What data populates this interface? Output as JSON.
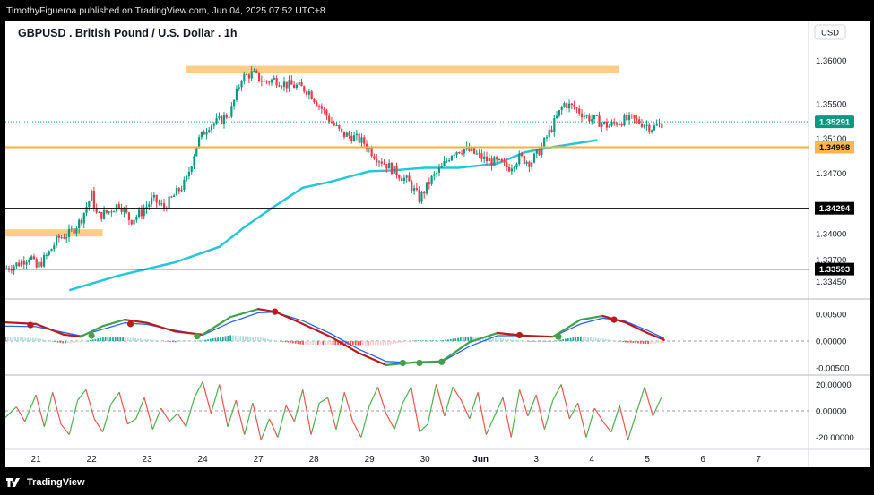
{
  "header": {
    "publisher_line": "TimothyFigueroa published on TradingView.com, Jun 04, 2025 07:52 UTC+8"
  },
  "footer": {
    "brand": "TradingView"
  },
  "chart_data": [
    {
      "type": "candlestick",
      "title": "GBPUSD . British Pound / U.S. Dollar . 1h",
      "currency": "USD",
      "ylim": [
        1.333,
        1.362
      ],
      "y_ticks": [
        1.36,
        1.355,
        1.351,
        1.347,
        1.34,
        1.337,
        1.3345
      ],
      "x_ticks": [
        "21",
        "22",
        "23",
        "24",
        "27",
        "28",
        "29",
        "30",
        "Jun",
        "3",
        "4",
        "5",
        "6",
        "7"
      ],
      "x_range": [
        -0.55,
        13.9
      ],
      "ma_line": [
        [
          0.6,
          1.3335
        ],
        [
          1.5,
          1.3352
        ],
        [
          2.5,
          1.3367
        ],
        [
          3.3,
          1.3385
        ],
        [
          3.8,
          1.341
        ],
        [
          4.3,
          1.3432
        ],
        [
          4.8,
          1.3453
        ],
        [
          5.3,
          1.346
        ],
        [
          6,
          1.3472
        ],
        [
          6.4,
          1.3473
        ],
        [
          7,
          1.3476
        ],
        [
          7.6,
          1.3476
        ],
        [
          8.3,
          1.3481
        ],
        [
          8.8,
          1.3494
        ],
        [
          9.3,
          1.35
        ],
        [
          10.1,
          1.3508
        ]
      ],
      "levels": [
        {
          "kind": "zone",
          "y": 1.35895,
          "x_from": 2.7,
          "x_to": 10.5,
          "label": ""
        },
        {
          "kind": "zone",
          "y": 1.3401,
          "x_from": -0.55,
          "x_to": 1.2,
          "label": ""
        },
        {
          "kind": "line",
          "y": 1.34998,
          "color": "#f5b041",
          "label": "1.34998"
        },
        {
          "kind": "line",
          "y": 1.34294,
          "color": "#000000",
          "label": "1.34294"
        },
        {
          "kind": "line",
          "y": 1.33593,
          "color": "#000000",
          "label": "1.33593"
        }
      ],
      "last_price": {
        "value": 1.35291,
        "label": "1.35291",
        "color": "#089981"
      },
      "price_path": [
        [
          -0.55,
          1.336
        ],
        [
          -0.3,
          1.3366
        ],
        [
          -0.1,
          1.3375
        ],
        [
          0,
          1.336
        ],
        [
          0.2,
          1.3375
        ],
        [
          0.4,
          1.3395
        ],
        [
          0.6,
          1.34
        ],
        [
          0.8,
          1.3415
        ],
        [
          1.0,
          1.3445
        ],
        [
          1.1,
          1.342
        ],
        [
          1.3,
          1.3425
        ],
        [
          1.5,
          1.3435
        ],
        [
          1.7,
          1.3415
        ],
        [
          1.9,
          1.3425
        ],
        [
          2.1,
          1.344
        ],
        [
          2.3,
          1.343
        ],
        [
          2.5,
          1.3445
        ],
        [
          2.7,
          1.346
        ],
        [
          2.9,
          1.3505
        ],
        [
          3.1,
          1.3525
        ],
        [
          3.3,
          1.353
        ],
        [
          3.5,
          1.354
        ],
        [
          3.7,
          1.358
        ],
        [
          3.9,
          1.3585
        ],
        [
          4.1,
          1.3575
        ],
        [
          4.3,
          1.3578
        ],
        [
          4.5,
          1.3572
        ],
        [
          4.7,
          1.357
        ],
        [
          4.9,
          1.3565
        ],
        [
          5.1,
          1.3548
        ],
        [
          5.3,
          1.353
        ],
        [
          5.5,
          1.3515
        ],
        [
          5.7,
          1.3512
        ],
        [
          5.9,
          1.3505
        ],
        [
          6.1,
          1.349
        ],
        [
          6.3,
          1.348
        ],
        [
          6.5,
          1.347
        ],
        [
          6.7,
          1.346
        ],
        [
          6.9,
          1.344
        ],
        [
          7.1,
          1.3462
        ],
        [
          7.3,
          1.3476
        ],
        [
          7.5,
          1.3495
        ],
        [
          7.7,
          1.3498
        ],
        [
          7.9,
          1.3492
        ],
        [
          8.1,
          1.3485
        ],
        [
          8.3,
          1.3482
        ],
        [
          8.5,
          1.3476
        ],
        [
          8.7,
          1.3488
        ],
        [
          8.9,
          1.3482
        ],
        [
          9.1,
          1.35
        ],
        [
          9.3,
          1.3525
        ],
        [
          9.5,
          1.355
        ],
        [
          9.7,
          1.3545
        ],
        [
          9.9,
          1.3535
        ],
        [
          10.1,
          1.353
        ],
        [
          10.3,
          1.3524
        ],
        [
          10.5,
          1.353
        ],
        [
          10.7,
          1.3532
        ],
        [
          10.9,
          1.3528
        ],
        [
          11.1,
          1.3522
        ],
        [
          11.3,
          1.3529
        ]
      ],
      "series": [
        {
          "name": "",
          "kind": "candles"
        },
        {
          "name": "",
          "kind": "moving-average",
          "color": "#26c6da"
        }
      ]
    },
    {
      "type": "line",
      "title": "",
      "ylim": [
        -0.0062,
        0.0072
      ],
      "y_ticks": [
        0.005,
        0.0,
        -0.005
      ],
      "y_tick_labels": [
        "0.00500",
        "0.00000",
        "-0.00500"
      ],
      "fast": [
        [
          -0.55,
          0.0035
        ],
        [
          0,
          0.0032
        ],
        [
          0.5,
          0.0012
        ],
        [
          0.8,
          0.0008
        ],
        [
          1.2,
          0.0028
        ],
        [
          1.6,
          0.004
        ],
        [
          2,
          0.0034
        ],
        [
          2.5,
          0.0018
        ],
        [
          3,
          0.0012
        ],
        [
          3.5,
          0.0045
        ],
        [
          4,
          0.006
        ],
        [
          4.3,
          0.0055
        ],
        [
          4.8,
          0.0032
        ],
        [
          5.3,
          0.0008
        ],
        [
          5.8,
          -0.0022
        ],
        [
          6.3,
          -0.0045
        ],
        [
          6.8,
          -0.004
        ],
        [
          7.3,
          -0.0038
        ],
        [
          7.8,
          -0.0002
        ],
        [
          8.3,
          0.0015
        ],
        [
          8.8,
          0.001
        ],
        [
          9.3,
          0.0008
        ],
        [
          9.8,
          0.004
        ],
        [
          10.2,
          0.0047
        ],
        [
          10.6,
          0.0035
        ],
        [
          11,
          0.0015
        ],
        [
          11.3,
          0.0002
        ]
      ],
      "slow": [
        [
          -0.55,
          0.0028
        ],
        [
          0,
          0.0027
        ],
        [
          0.5,
          0.0016
        ],
        [
          0.8,
          0.001
        ],
        [
          1.2,
          0.0022
        ],
        [
          1.6,
          0.0034
        ],
        [
          2,
          0.0031
        ],
        [
          2.5,
          0.002
        ],
        [
          3,
          0.0011
        ],
        [
          3.5,
          0.0035
        ],
        [
          4,
          0.0053
        ],
        [
          4.3,
          0.0054
        ],
        [
          4.8,
          0.0038
        ],
        [
          5.3,
          0.0014
        ],
        [
          5.8,
          -0.0015
        ],
        [
          6.3,
          -0.0038
        ],
        [
          6.8,
          -0.0041
        ],
        [
          7.3,
          -0.0039
        ],
        [
          7.8,
          -0.001
        ],
        [
          8.3,
          0.001
        ],
        [
          8.8,
          0.001
        ],
        [
          9.3,
          0.0008
        ],
        [
          9.8,
          0.0032
        ],
        [
          10.2,
          0.0043
        ],
        [
          10.6,
          0.0037
        ],
        [
          11,
          0.002
        ],
        [
          11.3,
          0.0005
        ]
      ],
      "cross_points": [
        {
          "x": -0.1,
          "y": 0.003,
          "dir": "down"
        },
        {
          "x": 1.0,
          "y": 0.001,
          "dir": "up"
        },
        {
          "x": 1.7,
          "y": 0.0032,
          "dir": "down"
        },
        {
          "x": 2.9,
          "y": 0.0009,
          "dir": "up"
        },
        {
          "x": 4.3,
          "y": 0.0055,
          "dir": "down"
        },
        {
          "x": 6.6,
          "y": -0.0041,
          "dir": "up"
        },
        {
          "x": 6.9,
          "y": -0.0041,
          "dir": "up"
        },
        {
          "x": 7.3,
          "y": -0.0039,
          "dir": "up"
        },
        {
          "x": 8.7,
          "y": 0.0011,
          "dir": "down"
        },
        {
          "x": 9.4,
          "y": 0.0008,
          "dir": "up"
        },
        {
          "x": 10.4,
          "y": 0.004,
          "dir": "down"
        }
      ]
    },
    {
      "type": "line",
      "title": "",
      "ylim": [
        -27,
        27
      ],
      "y_ticks": [
        20,
        0,
        -20
      ],
      "y_tick_labels": [
        "20.00000",
        "0.00000",
        "-20.00000"
      ],
      "oscillator": [
        [
          -0.55,
          -5
        ],
        [
          -0.35,
          3
        ],
        [
          -0.2,
          -8
        ],
        [
          0,
          12
        ],
        [
          0.15,
          -12
        ],
        [
          0.3,
          14
        ],
        [
          0.45,
          -10
        ],
        [
          0.6,
          -18
        ],
        [
          0.75,
          8
        ],
        [
          0.9,
          16
        ],
        [
          1.05,
          -6
        ],
        [
          1.2,
          -16
        ],
        [
          1.35,
          5
        ],
        [
          1.5,
          14
        ],
        [
          1.65,
          -10
        ],
        [
          1.8,
          -6
        ],
        [
          1.95,
          10
        ],
        [
          2.1,
          -14
        ],
        [
          2.25,
          2
        ],
        [
          2.4,
          -8
        ],
        [
          2.55,
          -2
        ],
        [
          2.7,
          -12
        ],
        [
          2.85,
          10
        ],
        [
          3.0,
          22
        ],
        [
          3.15,
          -2
        ],
        [
          3.3,
          20
        ],
        [
          3.45,
          -12
        ],
        [
          3.6,
          8
        ],
        [
          3.75,
          -18
        ],
        [
          3.9,
          6
        ],
        [
          4.05,
          -22
        ],
        [
          4.2,
          -6
        ],
        [
          4.35,
          -20
        ],
        [
          4.5,
          4
        ],
        [
          4.65,
          -8
        ],
        [
          4.8,
          16
        ],
        [
          4.95,
          -18
        ],
        [
          5.1,
          6
        ],
        [
          5.25,
          10
        ],
        [
          5.4,
          -14
        ],
        [
          5.55,
          14
        ],
        [
          5.7,
          -8
        ],
        [
          5.85,
          -20
        ],
        [
          6.0,
          4
        ],
        [
          6.15,
          18
        ],
        [
          6.3,
          -2
        ],
        [
          6.45,
          -14
        ],
        [
          6.6,
          6
        ],
        [
          6.75,
          18
        ],
        [
          6.9,
          -16
        ],
        [
          7.05,
          -10
        ],
        [
          7.2,
          20
        ],
        [
          7.35,
          -4
        ],
        [
          7.5,
          18
        ],
        [
          7.65,
          8
        ],
        [
          7.8,
          -6
        ],
        [
          7.95,
          14
        ],
        [
          8.1,
          -18
        ],
        [
          8.25,
          -4
        ],
        [
          8.4,
          10
        ],
        [
          8.55,
          -20
        ],
        [
          8.7,
          16
        ],
        [
          8.85,
          -4
        ],
        [
          9.0,
          12
        ],
        [
          9.15,
          -14
        ],
        [
          9.3,
          8
        ],
        [
          9.45,
          20
        ],
        [
          9.6,
          -6
        ],
        [
          9.75,
          6
        ],
        [
          9.9,
          -20
        ],
        [
          10.05,
          2
        ],
        [
          10.2,
          -8
        ],
        [
          10.35,
          -16
        ],
        [
          10.5,
          4
        ],
        [
          10.65,
          -22
        ],
        [
          10.8,
          -2
        ],
        [
          10.95,
          18
        ],
        [
          11.1,
          -4
        ],
        [
          11.25,
          10
        ]
      ]
    }
  ]
}
